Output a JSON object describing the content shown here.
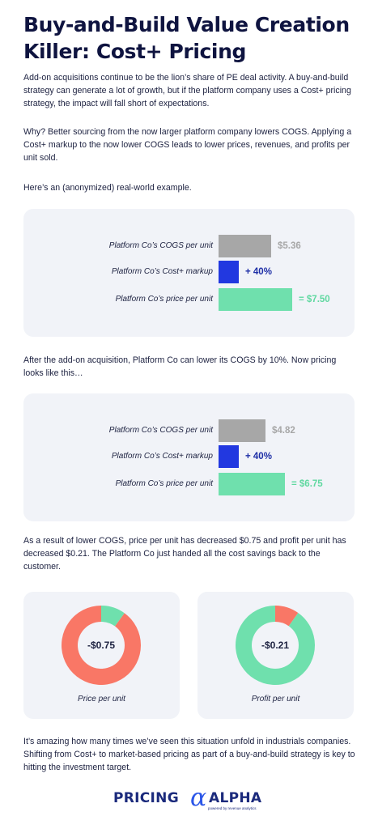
{
  "title": "Buy-and-Build Value Creation Killer: Cost+ Pricing",
  "paragraphs": {
    "intro": "Add-on acquisitions continue to be the lion’s share of PE deal activity. A buy-and-build strategy can generate a lot of growth, but if the platform company uses a Cost+ pricing strategy, the impact will fall short of expectations.",
    "why": "Why? Better sourcing from the now larger platform company lowers COGS. Applying a Cost+ markup to the now lower COGS leads to lower prices, revenues, and profits per unit sold.",
    "example": "Here’s an (anonymized) real-world example.",
    "after": "After the add-on acquisition, Platform Co can lower its COGS by 10%. Now pricing looks like this…",
    "result": "As a result of lower COGS, price per unit has decreased $0.75 and profit per unit has decreased $0.21. The Platform Co just handed all the cost savings back to the customer.",
    "closing": "It’s amazing how many times we’ve seen this situation unfold in industrials companies. Shifting from Cost+ to market-based pricing as part of a buy-and-build strategy is key to hitting the investment target."
  },
  "colors": {
    "cogs": "#a7a7a7",
    "markup": "#2238e0",
    "price": "#6fe0ad",
    "price_text": "#5fd8a0",
    "cogs_text": "#a7a7a7",
    "markup_text": "#1d2ea6",
    "donut_red": "#f97766",
    "donut_green": "#6fe0ad"
  },
  "chart_data": [
    {
      "type": "bar",
      "categories": [
        "Platform Co’s COGS per unit",
        "Platform Co’s Cost+ markup",
        "Platform Co’s price per unit"
      ],
      "values": [
        5.36,
        40,
        7.5
      ],
      "value_labels": [
        "$5.36",
        "+ 40%",
        "= $7.50"
      ]
    },
    {
      "type": "bar",
      "categories": [
        "Platform Co’s COGS per unit",
        "Platform Co’s Cost+ markup",
        "Platform Co’s price per unit"
      ],
      "values": [
        4.82,
        40,
        6.75
      ],
      "value_labels": [
        "$4.82",
        "+ 40%",
        "= $6.75"
      ]
    },
    {
      "type": "pie",
      "caption": "Price per unit",
      "center_label": "-$0.75",
      "slices": [
        {
          "value": 0.75,
          "color": "donut_green"
        },
        {
          "value": 6.75,
          "color": "donut_red"
        }
      ]
    },
    {
      "type": "pie",
      "caption": "Profit per unit",
      "center_label": "-$0.21",
      "slices": [
        {
          "value": 0.21,
          "color": "donut_red"
        },
        {
          "value": 1.93,
          "color": "donut_green"
        }
      ]
    }
  ],
  "logo": {
    "word1": "PRICING",
    "word2": "ALPHA",
    "tagline": "powered by revenue analytics"
  }
}
